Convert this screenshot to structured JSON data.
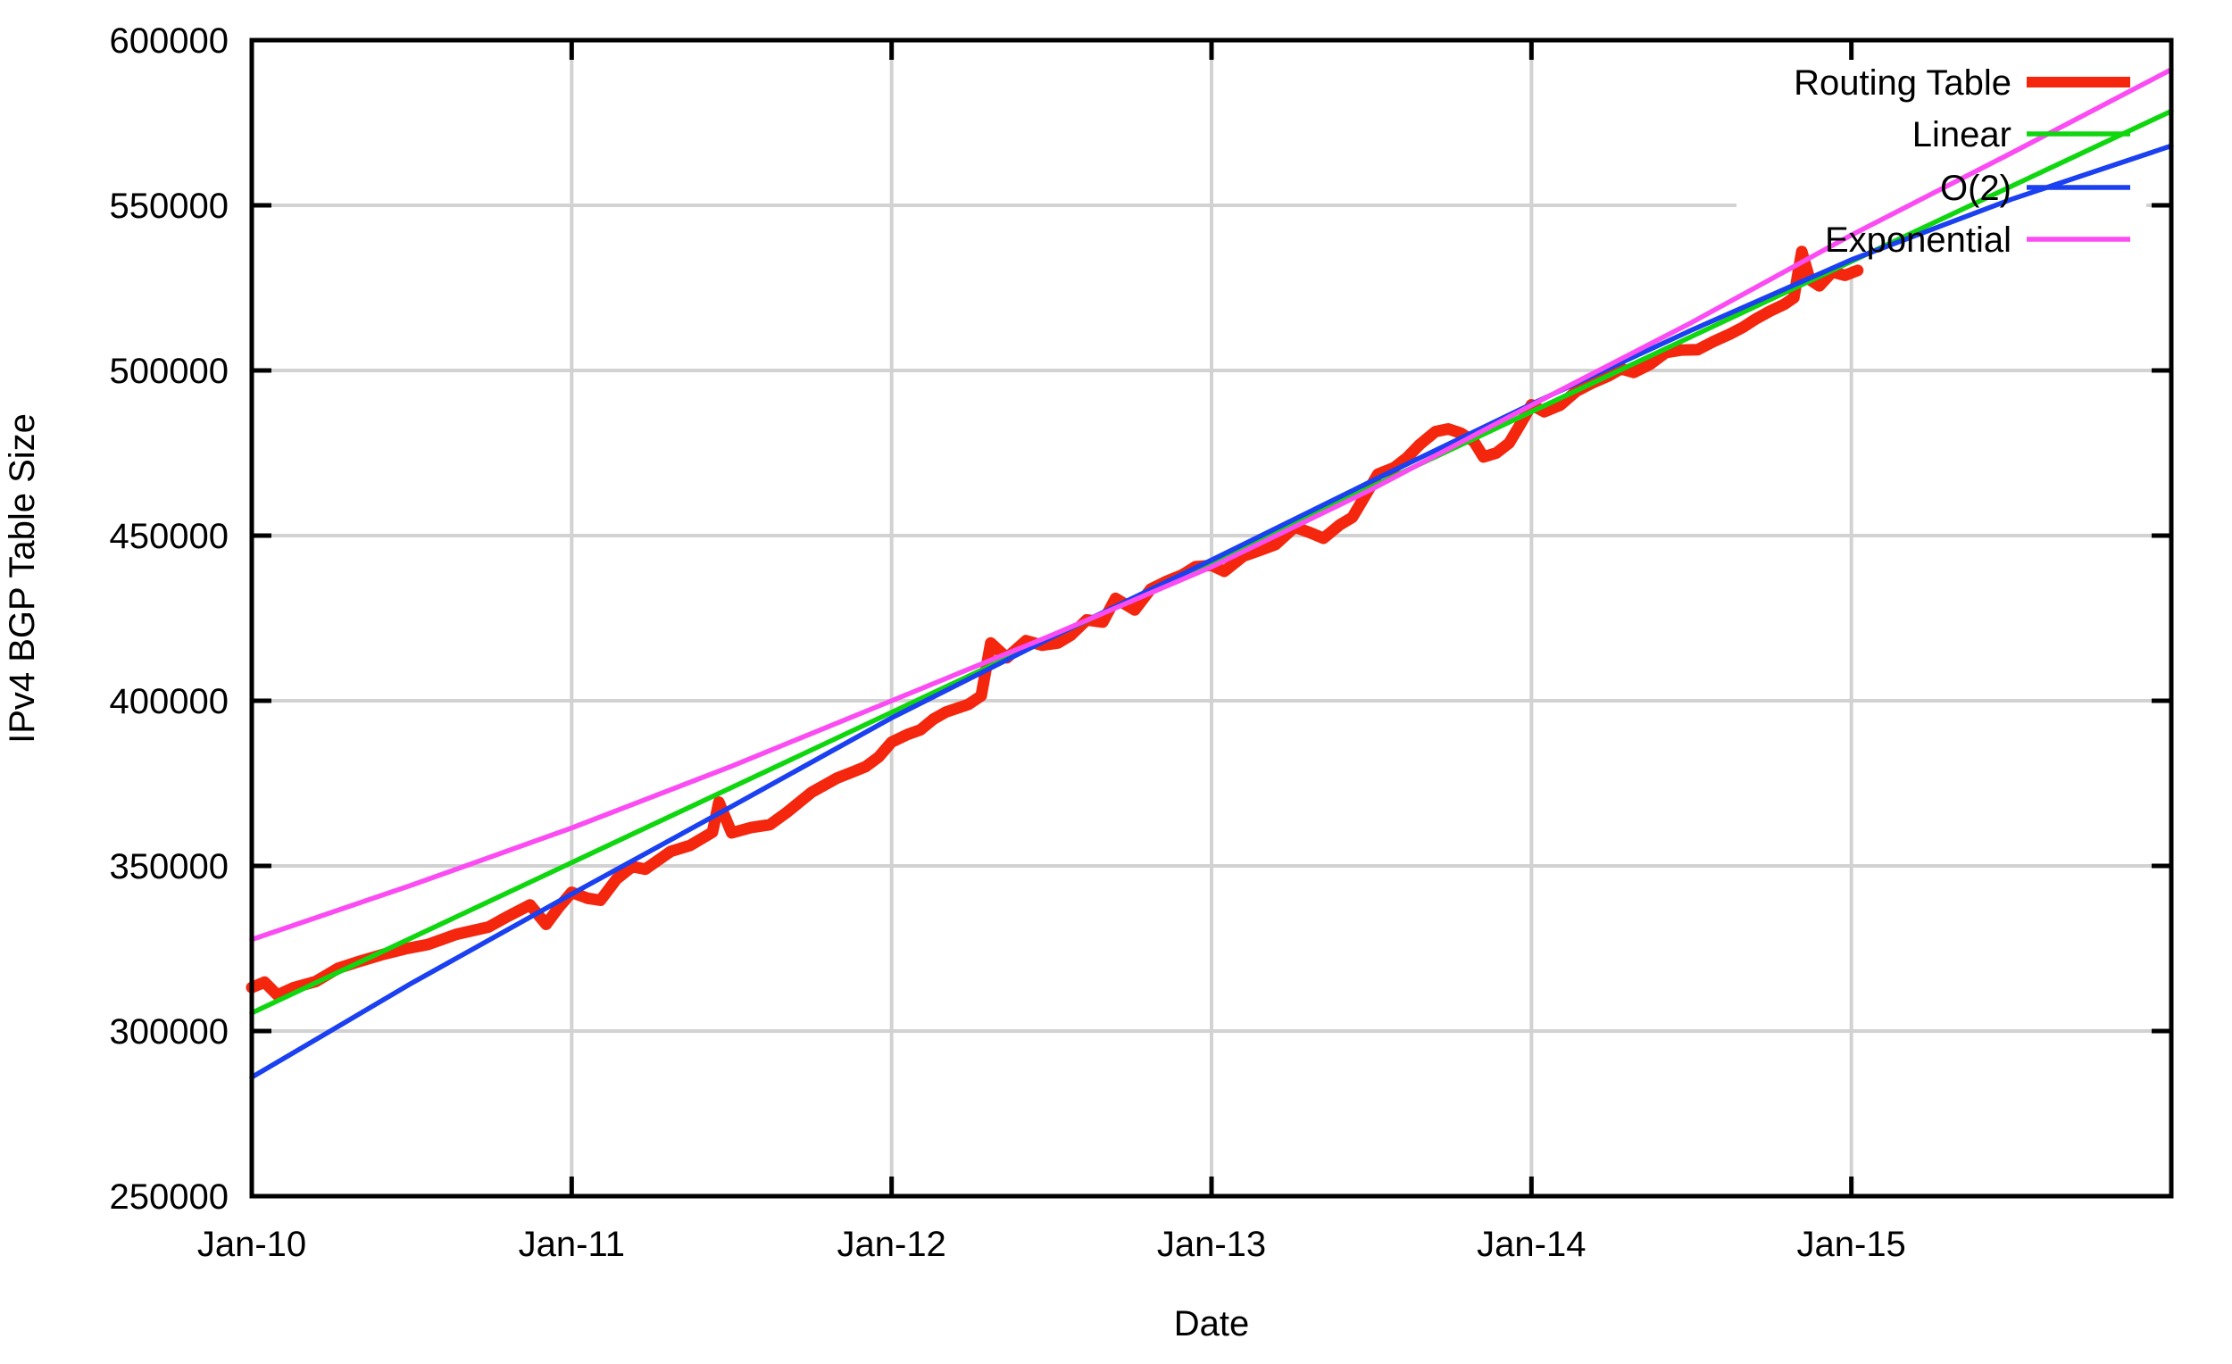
{
  "chart_data": {
    "type": "line",
    "title": "",
    "xlabel": "Date",
    "ylabel": "IPv4 BGP Table Size",
    "x_axis": {
      "unit": "decimal_year",
      "min": 2010.0,
      "max": 2016.0,
      "ticks": [
        {
          "t": 2010.0,
          "label": "Jan-10"
        },
        {
          "t": 2011.0,
          "label": "Jan-11"
        },
        {
          "t": 2012.0,
          "label": "Jan-12"
        },
        {
          "t": 2013.0,
          "label": "Jan-13"
        },
        {
          "t": 2014.0,
          "label": "Jan-14"
        },
        {
          "t": 2015.0,
          "label": "Jan-15"
        }
      ]
    },
    "y_axis": {
      "min": 250000,
      "max": 600000,
      "tick_step": 50000,
      "ticks": [
        250000,
        300000,
        350000,
        400000,
        450000,
        500000,
        550000,
        600000
      ]
    },
    "grid": {
      "show": true,
      "color": "#d2d2d2"
    },
    "frame_color": "#000000",
    "legend": {
      "position": "top-right",
      "opaque_box": true,
      "box_color": "#ffffff",
      "entries": [
        "Routing Table",
        "Linear",
        "O(2)",
        "Exponential"
      ]
    },
    "series": [
      {
        "name": "Routing Table",
        "color": "#f4260e",
        "width": 13,
        "points": [
          [
            2010.0,
            313200
          ],
          [
            2010.04,
            314800
          ],
          [
            2010.08,
            310900
          ],
          [
            2010.13,
            313100
          ],
          [
            2010.2,
            315000
          ],
          [
            2010.27,
            319000
          ],
          [
            2010.34,
            321200
          ],
          [
            2010.41,
            323200
          ],
          [
            2010.48,
            324900
          ],
          [
            2010.55,
            326200
          ],
          [
            2010.64,
            329300
          ],
          [
            2010.74,
            331500
          ],
          [
            2010.8,
            334700
          ],
          [
            2010.87,
            338200
          ],
          [
            2010.92,
            332300
          ],
          [
            2010.96,
            337500
          ],
          [
            2011.0,
            342000
          ],
          [
            2011.05,
            340200
          ],
          [
            2011.09,
            339600
          ],
          [
            2011.14,
            346000
          ],
          [
            2011.19,
            349800
          ],
          [
            2011.23,
            349000
          ],
          [
            2011.31,
            354400
          ],
          [
            2011.37,
            356200
          ],
          [
            2011.44,
            360200
          ],
          [
            2011.46,
            369300
          ],
          [
            2011.5,
            360000
          ],
          [
            2011.56,
            361600
          ],
          [
            2011.62,
            362500
          ],
          [
            2011.67,
            366000
          ],
          [
            2011.75,
            372300
          ],
          [
            2011.83,
            376600
          ],
          [
            2011.88,
            378500
          ],
          [
            2011.92,
            380100
          ],
          [
            2011.96,
            383000
          ],
          [
            2012.0,
            387500
          ],
          [
            2012.05,
            389800
          ],
          [
            2012.09,
            391200
          ],
          [
            2012.13,
            394400
          ],
          [
            2012.17,
            396600
          ],
          [
            2012.24,
            398900
          ],
          [
            2012.28,
            401500
          ],
          [
            2012.31,
            417500
          ],
          [
            2012.36,
            413000
          ],
          [
            2012.42,
            418200
          ],
          [
            2012.47,
            416800
          ],
          [
            2012.52,
            417500
          ],
          [
            2012.56,
            419800
          ],
          [
            2012.61,
            424500
          ],
          [
            2012.66,
            423800
          ],
          [
            2012.7,
            431000
          ],
          [
            2012.76,
            427500
          ],
          [
            2012.81,
            433800
          ],
          [
            2012.86,
            436200
          ],
          [
            2012.91,
            438200
          ],
          [
            2012.95,
            440600
          ],
          [
            2013.0,
            441000
          ],
          [
            2013.04,
            439200
          ],
          [
            2013.1,
            443800
          ],
          [
            2013.15,
            445500
          ],
          [
            2013.2,
            447300
          ],
          [
            2013.26,
            452600
          ],
          [
            2013.31,
            450800
          ],
          [
            2013.35,
            449200
          ],
          [
            2013.4,
            453200
          ],
          [
            2013.44,
            455500
          ],
          [
            2013.48,
            462000
          ],
          [
            2013.52,
            468600
          ],
          [
            2013.57,
            470500
          ],
          [
            2013.61,
            473500
          ],
          [
            2013.65,
            477500
          ],
          [
            2013.7,
            481500
          ],
          [
            2013.74,
            482300
          ],
          [
            2013.78,
            481000
          ],
          [
            2013.82,
            478500
          ],
          [
            2013.85,
            473800
          ],
          [
            2013.89,
            475000
          ],
          [
            2013.93,
            478000
          ],
          [
            2013.97,
            484500
          ],
          [
            2014.0,
            489600
          ],
          [
            2014.04,
            487500
          ],
          [
            2014.09,
            489500
          ],
          [
            2014.14,
            493700
          ],
          [
            2014.19,
            496200
          ],
          [
            2014.24,
            498300
          ],
          [
            2014.28,
            500500
          ],
          [
            2014.32,
            499400
          ],
          [
            2014.37,
            501800
          ],
          [
            2014.42,
            505400
          ],
          [
            2014.47,
            506200
          ],
          [
            2014.52,
            506300
          ],
          [
            2014.57,
            508800
          ],
          [
            2014.62,
            511000
          ],
          [
            2014.66,
            513000
          ],
          [
            2014.7,
            515500
          ],
          [
            2014.75,
            518200
          ],
          [
            2014.79,
            520000
          ],
          [
            2014.82,
            522000
          ],
          [
            2014.845,
            536000
          ],
          [
            2014.87,
            527500
          ],
          [
            2014.9,
            525600
          ],
          [
            2014.94,
            529800
          ],
          [
            2014.98,
            528800
          ],
          [
            2015.02,
            530300
          ]
        ]
      },
      {
        "name": "Linear",
        "color": "#0fd60f",
        "width": 5.5,
        "points": [
          [
            2010.0,
            305500
          ],
          [
            2016.0,
            578500
          ]
        ]
      },
      {
        "name": "O(2)",
        "color": "#1b40f0",
        "width": 5.5,
        "points": [
          [
            2010.0,
            286000
          ],
          [
            2010.5,
            314500
          ],
          [
            2011.0,
            341500
          ],
          [
            2011.5,
            368000
          ],
          [
            2012.0,
            394800
          ],
          [
            2012.5,
            419200
          ],
          [
            2013.0,
            442600
          ],
          [
            2013.5,
            466500
          ],
          [
            2014.0,
            489800
          ],
          [
            2014.5,
            512200
          ],
          [
            2015.0,
            533500
          ],
          [
            2015.5,
            551800
          ],
          [
            2016.0,
            568000
          ]
        ]
      },
      {
        "name": "Exponential",
        "color": "#fb4cf3",
        "width": 5.5,
        "points": [
          [
            2010.0,
            327700
          ],
          [
            2010.5,
            344200
          ],
          [
            2011.0,
            361500
          ],
          [
            2011.5,
            380200
          ],
          [
            2012.0,
            400000
          ],
          [
            2012.5,
            419800
          ],
          [
            2013.0,
            440500
          ],
          [
            2013.5,
            464000
          ],
          [
            2014.0,
            489500
          ],
          [
            2014.5,
            514500
          ],
          [
            2015.0,
            541000
          ],
          [
            2015.5,
            565800
          ],
          [
            2016.0,
            591100
          ]
        ]
      }
    ]
  }
}
